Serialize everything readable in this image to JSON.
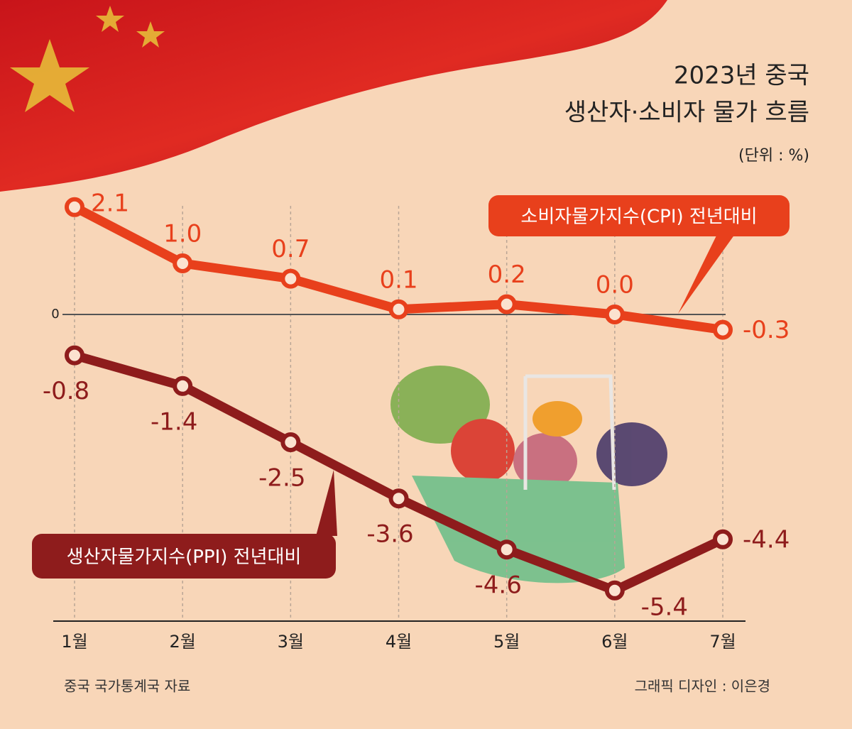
{
  "chart_data": {
    "type": "line",
    "title": "2023년 중국",
    "subtitle": "생산자·소비자 물가 흐름",
    "unit_label": "(단위 : %)",
    "categories": [
      "1월",
      "2월",
      "3월",
      "4월",
      "5월",
      "6월",
      "7월"
    ],
    "series": [
      {
        "name": "소비자물가지수(CPI) 전년대비",
        "color": "#e8401c",
        "values": [
          2.1,
          1.0,
          0.7,
          0.1,
          0.2,
          0.0,
          -0.3
        ],
        "value_labels": [
          "2.1",
          "1.0",
          "0.7",
          "0.1",
          "0.2",
          "0.0",
          "-0.3"
        ]
      },
      {
        "name": "생산자물가지수(PPI) 전년대비",
        "color": "#8e1c1c",
        "values": [
          -0.8,
          -1.4,
          -2.5,
          -3.6,
          -4.6,
          -5.4,
          -4.4
        ]
      }
    ],
    "ylim": [
      -6,
      2.6
    ],
    "yticks": [
      0
    ],
    "source": "중국 국가통계국 자료",
    "credit": "그래픽 디자인 : 이은경"
  }
}
